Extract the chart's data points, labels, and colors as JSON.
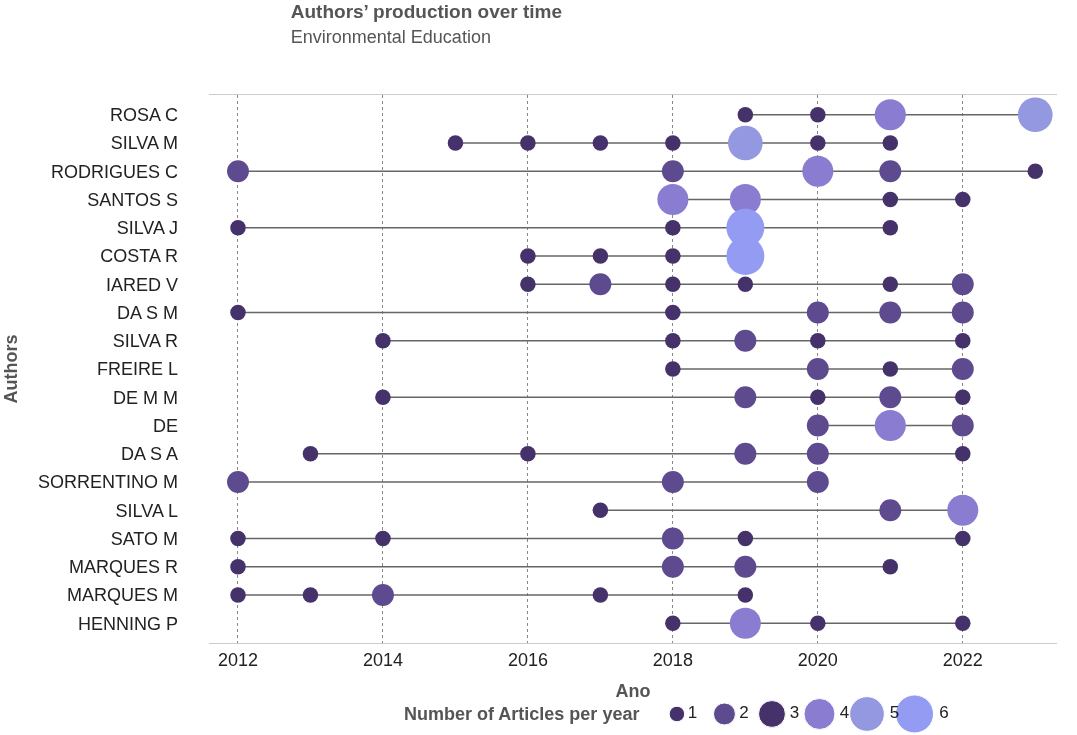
{
  "chart_data": {
    "type": "bubble",
    "orientation": "horizontal",
    "title": "Authors’ production over time",
    "subtitle": "Environmental Education",
    "xlabel": "Ano",
    "ylabel": "Authors",
    "legend_title": "Number of Articles per year",
    "grid": "x",
    "marker": "circle",
    "line_style": "solid",
    "size_legend": [
      1,
      2,
      3,
      4,
      5,
      6
    ],
    "xlim": [
      2011.6,
      2023.3
    ],
    "xticks": [
      2012,
      2014,
      2016,
      2018,
      2020,
      2022
    ],
    "categories": [
      "ROSA C",
      "SILVA M",
      "RODRIGUES C",
      "SANTOS S",
      "SILVA J",
      "COSTA R",
      "IARED V",
      "DA S M",
      "SILVA R",
      "FREIRE L",
      "DE M M",
      "DE",
      "DA S A",
      "SORRENTINO M",
      "SILVA L",
      "SATO M",
      "MARQUES R",
      "MARQUES M",
      "HENNING P"
    ],
    "series": [
      {
        "values": [
          2019,
          2015,
          2012,
          2018,
          2012,
          2016,
          2016,
          2012,
          2014,
          2018,
          2014,
          2020,
          2013,
          2012,
          2017,
          2012,
          2012,
          2012,
          2018
        ],
        "sizes": [
          1,
          1,
          2,
          4,
          1,
          1,
          1,
          1,
          1,
          1,
          1,
          2,
          1,
          2,
          1,
          1,
          1,
          1,
          1
        ],
        "colors": [
          "#46326a",
          "#46326a",
          "#5e4a8f",
          "#8a7cd0",
          "#46326a",
          "#46326a",
          "#46326a",
          "#46326a",
          "#46326a",
          "#46326a",
          "#46326a",
          "#5e4a8f",
          "#46326a",
          "#5e4a8f",
          "#46326a",
          "#46326a",
          "#46326a",
          "#46326a",
          "#46326a"
        ]
      },
      {
        "color": "#666666",
        "values": [
          2020,
          2016,
          2018,
          2019,
          2018,
          2017,
          2017,
          2018,
          2018,
          2020,
          2019,
          2021,
          2016,
          2018,
          2021,
          2014,
          2018,
          2013,
          2019
        ],
        "sizes": [
          1,
          1,
          2,
          4,
          1,
          1,
          2,
          1,
          1,
          2,
          2,
          4,
          1,
          2,
          2,
          1,
          2,
          1,
          4
        ],
        "colors": [
          "#46326a",
          "#46326a",
          "#5e4a8f",
          "#8a7cd0",
          "#46326a",
          "#46326a",
          "#5e4a8f",
          "#46326a",
          "#46326a",
          "#5e4a8f",
          "#5e4a8f",
          "#8a7cd0",
          "#46326a",
          "#5e4a8f",
          "#5e4a8f",
          "#46326a",
          "#5e4a8f",
          "#46326a",
          "#8a7cd0"
        ]
      },
      {
        "color": "#666666",
        "values": [
          2021,
          2017,
          2020,
          2021,
          2019,
          2018,
          2018,
          2020,
          2019,
          2021,
          2020,
          2022,
          2019,
          2020,
          2022,
          2018,
          2019,
          2014,
          2020
        ],
        "sizes": [
          4,
          1,
          4,
          1,
          6,
          1,
          1,
          2,
          2,
          1,
          1,
          2,
          2,
          2,
          4,
          2,
          2,
          2,
          1
        ],
        "colors": [
          "#8a7cd0",
          "#46326a",
          "#8a7cd0",
          "#46326a",
          "#939cf2",
          "#46326a",
          "#46326a",
          "#5e4a8f",
          "#5e4a8f",
          "#46326a",
          "#46326a",
          "#5e4a8f",
          "#5e4a8f",
          "#5e4a8f",
          "#8a7cd0",
          "#5e4a8f",
          "#5e4a8f",
          "#5e4a8f",
          "#46326a"
        ]
      },
      {
        "color": "#666666",
        "values": [
          2023,
          2018,
          2021,
          2022,
          2021,
          2019,
          2019,
          2021,
          2020,
          2022,
          2021,
          null,
          2020,
          null,
          null,
          2019,
          2021,
          2017,
          2022
        ],
        "sizes": [
          5,
          1,
          2,
          1,
          1,
          6,
          1,
          2,
          1,
          2,
          2,
          null,
          2,
          null,
          null,
          1,
          1,
          1,
          1
        ],
        "colors": [
          "#9398e0",
          "#46326a",
          "#5e4a8f",
          "#46326a",
          "#46326a",
          "#939cf2",
          "#46326a",
          "#5e4a8f",
          "#46326a",
          "#5e4a8f",
          "#5e4a8f",
          null,
          "#5e4a8f",
          null,
          null,
          "#46326a",
          "#46326a",
          "#46326a",
          "#46326a"
        ]
      },
      {
        "color": "#666666",
        "values": [
          null,
          2019,
          2023,
          null,
          null,
          null,
          2021,
          2022,
          2022,
          null,
          2022,
          null,
          2022,
          null,
          null,
          2022,
          null,
          2019,
          null
        ],
        "sizes": [
          null,
          5,
          1,
          null,
          null,
          null,
          1,
          2,
          1,
          null,
          1,
          null,
          1,
          null,
          null,
          1,
          null,
          1,
          null
        ],
        "colors": [
          null,
          "#9398e0",
          "#46326a",
          null,
          null,
          null,
          "#46326a",
          "#5e4a8f",
          "#46326a",
          null,
          "#46326a",
          null,
          "#46326a",
          null,
          null,
          "#46326a",
          null,
          "#46326a",
          null
        ]
      },
      {
        "color": "#666666",
        "values": [
          null,
          2020,
          null,
          null,
          null,
          null,
          2022,
          null,
          null,
          null,
          null,
          null,
          null,
          null,
          null,
          null,
          null,
          null,
          null
        ],
        "sizes": [
          null,
          1,
          null,
          null,
          null,
          null,
          2,
          null,
          null,
          null,
          null,
          null,
          null,
          null,
          null,
          null,
          null,
          null,
          null
        ],
        "colors": [
          null,
          "#46326a",
          null,
          null,
          null,
          null,
          "#5e4a8f",
          null,
          null,
          null,
          null,
          null,
          null,
          null,
          null,
          null,
          null,
          null,
          null
        ]
      },
      {
        "color": "#666666",
        "values": [
          null,
          2021,
          null,
          null,
          null,
          null,
          null,
          null,
          null,
          null,
          null,
          null,
          null,
          null,
          null,
          null,
          null,
          null,
          null
        ],
        "sizes": [
          null,
          1,
          null,
          null,
          null,
          null,
          null,
          null,
          null,
          null,
          null,
          null,
          null,
          null,
          null,
          null,
          null,
          null,
          null
        ],
        "colors": [
          null,
          "#46326a",
          null,
          null,
          null,
          null,
          null,
          null,
          null,
          null,
          null,
          null,
          null,
          null,
          null,
          null,
          null,
          null,
          null
        ]
      }
    ]
  }
}
